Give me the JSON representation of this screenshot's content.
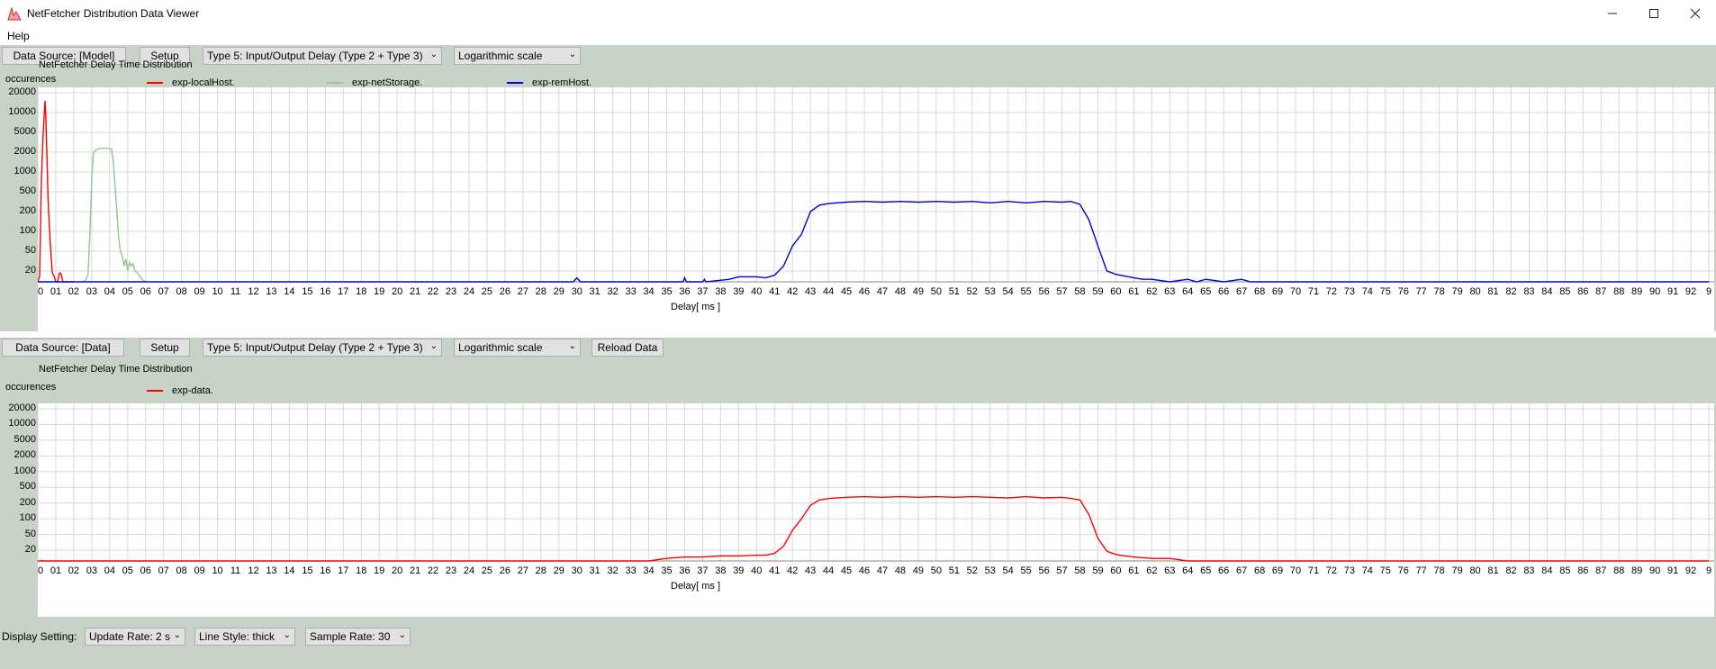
{
  "window": {
    "title": "NetFetcher Distribution Data Viewer"
  },
  "menu": {
    "items": [
      "Help"
    ]
  },
  "colors": {
    "panel": "#c8d3c8",
    "red": "#ff0000",
    "green": "#8fc79a",
    "blue": "#0000dd",
    "grid": "#d8d8d8"
  },
  "panel1": {
    "source_label": "Data Source: [Model]",
    "setup_label": "Setup",
    "type_select": "Type 5: Input/Output Delay (Type 2 + Type 3)",
    "scale_select": "Logarithmic scale",
    "title": "NetFetcher Delay Time Distribution",
    "ylabel": "occurences",
    "xlabel": "Delay[ ms ]",
    "legend": [
      "exp-localHost.",
      "exp-netStorage.",
      "exp-remHost."
    ]
  },
  "panel2": {
    "source_label": "Data Source: [Data]",
    "setup_label": "Setup",
    "type_select": "Type 5: Input/Output Delay (Type 2 + Type 3)",
    "scale_select": "Logarithmic scale",
    "reload_label": "Reload Data",
    "title": "NetFetcher Delay Time Distribution",
    "ylabel": "occurences",
    "xlabel": "Delay[ ms ]",
    "legend": [
      "exp-data."
    ]
  },
  "display_settings": {
    "label": "Display Setting:",
    "update_rate": "Update Rate: 2 s",
    "line_style": "Line Style: thick",
    "sample_rate": "Sample Rate: 30"
  },
  "chart_data": [
    {
      "type": "line",
      "title": "NetFetcher Delay Time Distribution",
      "xlabel": "Delay[ ms ]",
      "ylabel": "occurences",
      "y_scale": "log",
      "y_ticks": [
        "20000",
        "10000",
        "5000",
        "2000",
        "1000",
        "500",
        "200",
        "100",
        "50",
        "20"
      ],
      "x_ticks": [
        "00",
        "01",
        "02",
        "03",
        "04",
        "05",
        "06",
        "07",
        "08",
        "09",
        "10",
        "11",
        "12",
        "13",
        "14",
        "15",
        "16",
        "17",
        "18",
        "19",
        "20",
        "21",
        "22",
        "23",
        "24",
        "25",
        "26",
        "27",
        "28",
        "29",
        "30",
        "31",
        "32",
        "33",
        "34",
        "35",
        "36",
        "37",
        "38",
        "39",
        "40",
        "41",
        "42",
        "43",
        "44",
        "45",
        "46",
        "47",
        "48",
        "49",
        "50",
        "51",
        "52",
        "53",
        "54",
        "55",
        "56",
        "57",
        "58",
        "59",
        "60",
        "61",
        "62",
        "63",
        "64",
        "65",
        "66",
        "67",
        "68",
        "69",
        "70",
        "71",
        "72",
        "73",
        "74",
        "75",
        "76",
        "77",
        "78",
        "79",
        "80",
        "81",
        "82",
        "83",
        "84",
        "85",
        "86",
        "87",
        "88",
        "89",
        "90",
        "91",
        "92",
        "9"
      ],
      "xlim": [
        0,
        93
      ],
      "grid": true,
      "legend_position": "top",
      "series": [
        {
          "name": "exp-localHost.",
          "color": "#ff0000",
          "x": [
            0,
            0.1,
            0.2,
            0.3,
            0.4,
            0.45,
            0.5,
            0.55,
            0.6,
            0.7,
            0.8,
            0.9,
            1.0,
            1.1,
            1.2,
            1.25,
            1.3,
            1.4,
            1.5,
            2.0
          ],
          "y": [
            1,
            5,
            800,
            5000,
            15000,
            8000,
            2000,
            600,
            200,
            60,
            15,
            5,
            1,
            1,
            10,
            12,
            8,
            1,
            1,
            1
          ]
        },
        {
          "name": "exp-netStorage.",
          "color": "#8fc79a",
          "x": [
            2.5,
            2.7,
            2.8,
            2.9,
            3.0,
            3.1,
            3.3,
            3.6,
            3.9,
            4.1,
            4.2,
            4.3,
            4.4,
            4.5,
            4.6,
            4.7,
            4.8,
            4.9,
            5.0,
            5.1,
            5.2,
            5.3,
            5.4,
            5.5,
            5.6,
            5.8,
            6.0
          ],
          "y": [
            1,
            2,
            10,
            100,
            800,
            2000,
            2300,
            2400,
            2400,
            2300,
            1500,
            600,
            200,
            80,
            50,
            40,
            25,
            35,
            20,
            30,
            25,
            28,
            20,
            15,
            8,
            2,
            1
          ]
        },
        {
          "name": "exp-remHost.",
          "color": "#0000dd",
          "x": [
            0,
            29.8,
            30.0,
            30.2,
            35.9,
            36.0,
            36.1,
            37.0,
            37.1,
            37.2,
            38.5,
            39.0,
            40.0,
            40.5,
            41.0,
            41.5,
            42.0,
            42.5,
            43.0,
            43.5,
            44.0,
            45.0,
            46.0,
            47.0,
            48.0,
            49.0,
            50.0,
            51.0,
            52.0,
            53.0,
            54.0,
            55.0,
            56.0,
            57.0,
            57.5,
            58.0,
            58.5,
            59.0,
            59.5,
            60.0,
            60.5,
            61.0,
            61.5,
            62.0,
            63.0,
            64.0,
            64.5,
            65.0,
            66.0,
            67.0,
            67.5,
            93.0
          ],
          "y": [
            1,
            1,
            3,
            1,
            1,
            3,
            1,
            1,
            2,
            1,
            2,
            4,
            4,
            3,
            6,
            25,
            60,
            90,
            200,
            270,
            290,
            310,
            320,
            310,
            320,
            310,
            320,
            310,
            320,
            300,
            320,
            300,
            320,
            310,
            320,
            280,
            150,
            60,
            20,
            8,
            5,
            3,
            2,
            2,
            1,
            2,
            1,
            2,
            1,
            2,
            1,
            1
          ]
        }
      ]
    },
    {
      "type": "line",
      "title": "NetFetcher Delay Time Distribution",
      "xlabel": "Delay[ ms ]",
      "ylabel": "occurences",
      "y_scale": "log",
      "y_ticks": [
        "20000",
        "10000",
        "5000",
        "2000",
        "1000",
        "500",
        "200",
        "100",
        "50",
        "20"
      ],
      "x_ticks": [
        "00",
        "01",
        "02",
        "03",
        "04",
        "05",
        "06",
        "07",
        "08",
        "09",
        "10",
        "11",
        "12",
        "13",
        "14",
        "15",
        "16",
        "17",
        "18",
        "19",
        "20",
        "21",
        "22",
        "23",
        "24",
        "25",
        "26",
        "27",
        "28",
        "29",
        "30",
        "31",
        "32",
        "33",
        "34",
        "35",
        "36",
        "37",
        "38",
        "39",
        "40",
        "41",
        "42",
        "43",
        "44",
        "45",
        "46",
        "47",
        "48",
        "49",
        "50",
        "51",
        "52",
        "53",
        "54",
        "55",
        "56",
        "57",
        "58",
        "59",
        "60",
        "61",
        "62",
        "63",
        "64",
        "65",
        "66",
        "67",
        "68",
        "69",
        "70",
        "71",
        "72",
        "73",
        "74",
        "75",
        "76",
        "77",
        "78",
        "79",
        "80",
        "81",
        "82",
        "83",
        "84",
        "85",
        "86",
        "87",
        "88",
        "89",
        "90",
        "91",
        "92",
        "9"
      ],
      "xlim": [
        0,
        93
      ],
      "grid": true,
      "legend_position": "top",
      "series": [
        {
          "name": "exp-data.",
          "color": "#ff0000",
          "x": [
            0,
            34.0,
            35.0,
            36.0,
            37.0,
            38.0,
            39.0,
            40.0,
            40.5,
            41.0,
            41.5,
            42.0,
            42.5,
            43.0,
            43.5,
            44.0,
            45.0,
            46.0,
            47.0,
            48.0,
            49.0,
            50.0,
            51.0,
            52.0,
            53.0,
            54.0,
            55.0,
            56.0,
            57.0,
            57.5,
            58.0,
            58.5,
            59.0,
            59.5,
            60.0,
            60.5,
            61.0,
            62.0,
            63.0,
            64.0,
            65.0,
            93.0
          ],
          "y": [
            1,
            1,
            2,
            3,
            3,
            4,
            4,
            5,
            5,
            8,
            25,
            60,
            100,
            180,
            240,
            260,
            280,
            290,
            280,
            290,
            280,
            290,
            280,
            290,
            280,
            270,
            290,
            270,
            280,
            260,
            240,
            120,
            40,
            15,
            6,
            4,
            3,
            2,
            2,
            1,
            1,
            1
          ]
        }
      ]
    }
  ]
}
